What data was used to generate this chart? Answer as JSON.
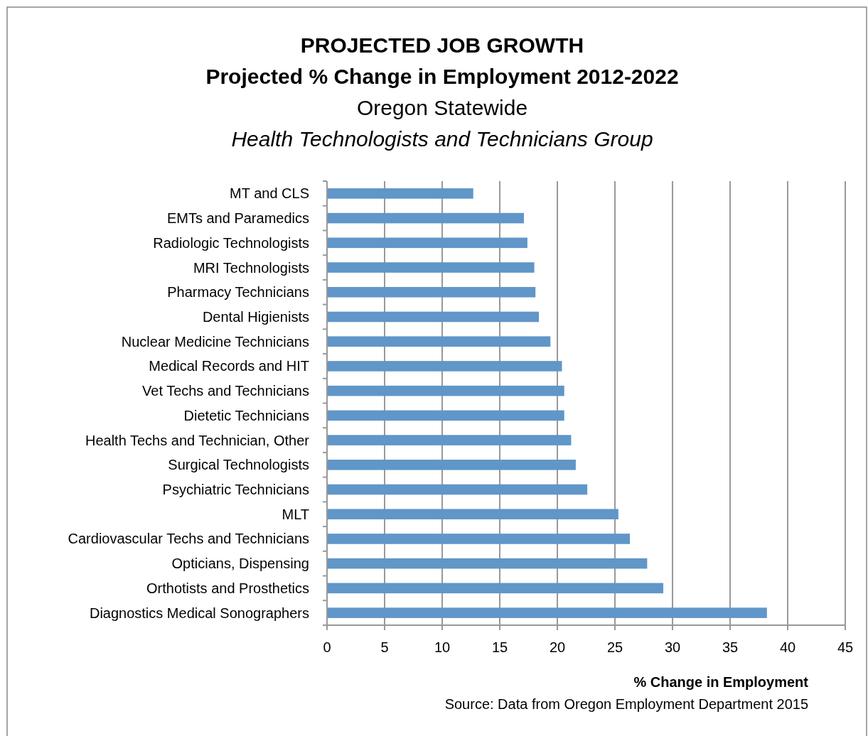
{
  "chart_data": {
    "type": "bar",
    "orientation": "horizontal",
    "title": "PROJECTED JOB GROWTH\nProjected % Change in Employment 2012-2022",
    "subtitle": "Oregon Statewide\nHealth Technologists and Technicians Group",
    "xlabel": "% Change in Employment",
    "annotations": [
      "Source: Data from Oregon Employment Department 2015"
    ],
    "categories": [
      "MT and CLS",
      "EMTs and Paramedics",
      "Radiologic Technologists",
      "MRI Technologists",
      "Pharmacy Technicians",
      "Dental Higienists",
      "Nuclear Medicine Technicians",
      "Medical Records and HIT",
      "Vet Techs and Technicians",
      "Dietetic Technicians",
      "Health Techs and Technician, Other",
      "Surgical Technologists",
      "Psychiatric Technicians",
      "MLT",
      "Cardiovascular Techs and Technicians",
      "Opticians, Dispensing",
      "Orthotists and Prosthetics",
      "Diagnostics Medical Sonographers"
    ],
    "values": [
      12.7,
      17.1,
      17.4,
      18.0,
      18.1,
      18.4,
      19.4,
      20.4,
      20.6,
      20.6,
      21.2,
      21.6,
      22.6,
      25.3,
      26.3,
      27.8,
      29.2,
      38.2
    ],
    "color": "#6096c8",
    "xlim": [
      0,
      45
    ],
    "xticks": [
      0,
      5,
      10,
      15,
      20,
      25,
      30,
      35,
      40,
      45
    ],
    "grid": "x"
  }
}
